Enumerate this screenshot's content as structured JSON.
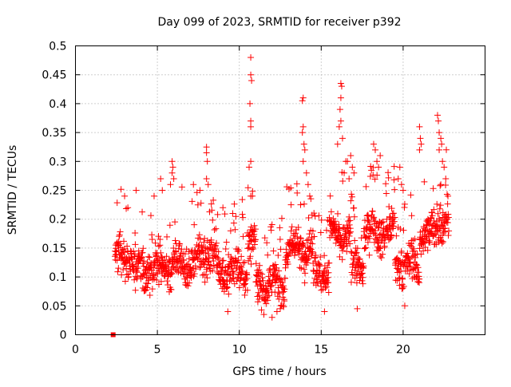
{
  "chart_data": {
    "type": "scatter",
    "title": "Day 099 of 2023, SRMTID for receiver p392",
    "xlabel": "GPS time / hours",
    "ylabel": "SRMTID / TECUs",
    "xlim": [
      0,
      25
    ],
    "ylim": [
      0,
      0.5
    ],
    "xticks": [
      0,
      5,
      10,
      15,
      20
    ],
    "xtick_labels": [
      "0",
      "5",
      "10",
      "15",
      "20"
    ],
    "yticks": [
      0,
      0.05,
      0.1,
      0.15,
      0.2,
      0.25,
      0.3,
      0.35,
      0.4,
      0.45,
      0.5
    ],
    "ytick_labels": [
      "0",
      "0.05",
      "0.1",
      "0.15",
      "0.2",
      "0.25",
      "0.3",
      "0.35",
      "0.4",
      "0.45",
      "0.5"
    ],
    "grid": true,
    "marker": "plus",
    "marker_color": "#ff0000",
    "seed": 99,
    "segments": [
      [
        2.4,
        3.6,
        0.13
      ],
      [
        3.6,
        4.8,
        0.11
      ],
      [
        4.8,
        6.2,
        0.12
      ],
      [
        6.2,
        7.4,
        0.12
      ],
      [
        7.4,
        8.6,
        0.14
      ],
      [
        8.6,
        10.5,
        0.11
      ],
      [
        10.5,
        11.0,
        0.16
      ],
      [
        11.0,
        12.8,
        0.09
      ],
      [
        12.8,
        14.5,
        0.15
      ],
      [
        14.5,
        15.5,
        0.11
      ],
      [
        15.5,
        16.8,
        0.17
      ],
      [
        16.8,
        17.6,
        0.12
      ],
      [
        17.6,
        19.5,
        0.18
      ],
      [
        19.5,
        21.0,
        0.12
      ],
      [
        21.0,
        21.7,
        0.17
      ],
      [
        21.7,
        22.8,
        0.19
      ]
    ],
    "outliers": [
      [
        10.7,
        0.48
      ],
      [
        10.7,
        0.45
      ],
      [
        10.75,
        0.44
      ],
      [
        10.65,
        0.4
      ],
      [
        10.7,
        0.36
      ],
      [
        10.7,
        0.37
      ],
      [
        10.7,
        0.3
      ],
      [
        10.6,
        0.29
      ],
      [
        10.8,
        0.24
      ],
      [
        10.7,
        0.24
      ],
      [
        13.9,
        0.41
      ],
      [
        13.85,
        0.405
      ],
      [
        13.9,
        0.36
      ],
      [
        13.85,
        0.35
      ],
      [
        13.95,
        0.33
      ],
      [
        14.0,
        0.32
      ],
      [
        13.9,
        0.3
      ],
      [
        14.1,
        0.28
      ],
      [
        14.2,
        0.26
      ],
      [
        14.3,
        0.24
      ],
      [
        16.2,
        0.435
      ],
      [
        16.25,
        0.43
      ],
      [
        16.2,
        0.41
      ],
      [
        16.15,
        0.39
      ],
      [
        16.1,
        0.36
      ],
      [
        16.2,
        0.37
      ],
      [
        16.0,
        0.33
      ],
      [
        16.3,
        0.34
      ],
      [
        16.5,
        0.3
      ],
      [
        16.6,
        0.3
      ],
      [
        16.4,
        0.28
      ],
      [
        16.7,
        0.27
      ],
      [
        16.8,
        0.31
      ],
      [
        16.9,
        0.29
      ],
      [
        17.0,
        0.28
      ],
      [
        8.0,
        0.325
      ],
      [
        8.0,
        0.315
      ],
      [
        8.05,
        0.3
      ],
      [
        8.0,
        0.27
      ],
      [
        8.1,
        0.26
      ],
      [
        5.9,
        0.3
      ],
      [
        5.95,
        0.29
      ],
      [
        5.9,
        0.28
      ],
      [
        6.0,
        0.27
      ],
      [
        5.8,
        0.26
      ],
      [
        21.0,
        0.36
      ],
      [
        21.05,
        0.34
      ],
      [
        21.1,
        0.33
      ],
      [
        21.0,
        0.32
      ],
      [
        22.1,
        0.38
      ],
      [
        22.15,
        0.37
      ],
      [
        22.2,
        0.35
      ],
      [
        22.3,
        0.34
      ],
      [
        22.35,
        0.33
      ],
      [
        22.2,
        0.32
      ],
      [
        22.4,
        0.3
      ],
      [
        22.5,
        0.29
      ],
      [
        22.6,
        0.27
      ],
      [
        22.3,
        0.26
      ],
      [
        18.2,
        0.33
      ],
      [
        18.3,
        0.32
      ],
      [
        18.4,
        0.3
      ],
      [
        18.5,
        0.29
      ],
      [
        18.6,
        0.31
      ],
      [
        19.8,
        0.29
      ],
      [
        19.7,
        0.27
      ],
      [
        19.9,
        0.26
      ],
      [
        20.0,
        0.25
      ],
      [
        3.0,
        0.24
      ],
      [
        3.2,
        0.22
      ],
      [
        3.7,
        0.25
      ],
      [
        4.8,
        0.24
      ],
      [
        5.3,
        0.25
      ],
      [
        5.2,
        0.27
      ],
      [
        7.2,
        0.26
      ],
      [
        7.6,
        0.25
      ],
      [
        9.0,
        0.22
      ],
      [
        9.6,
        0.21
      ],
      [
        12.3,
        0.04
      ],
      [
        12.0,
        0.03
      ],
      [
        11.5,
        0.035
      ],
      [
        12.5,
        0.045
      ],
      [
        15.2,
        0.04
      ],
      [
        17.2,
        0.045
      ],
      [
        20.1,
        0.05
      ],
      [
        9.3,
        0.04
      ]
    ],
    "special_marker": {
      "x": 2.3,
      "y": 0.0,
      "shape": "filled-square"
    }
  }
}
